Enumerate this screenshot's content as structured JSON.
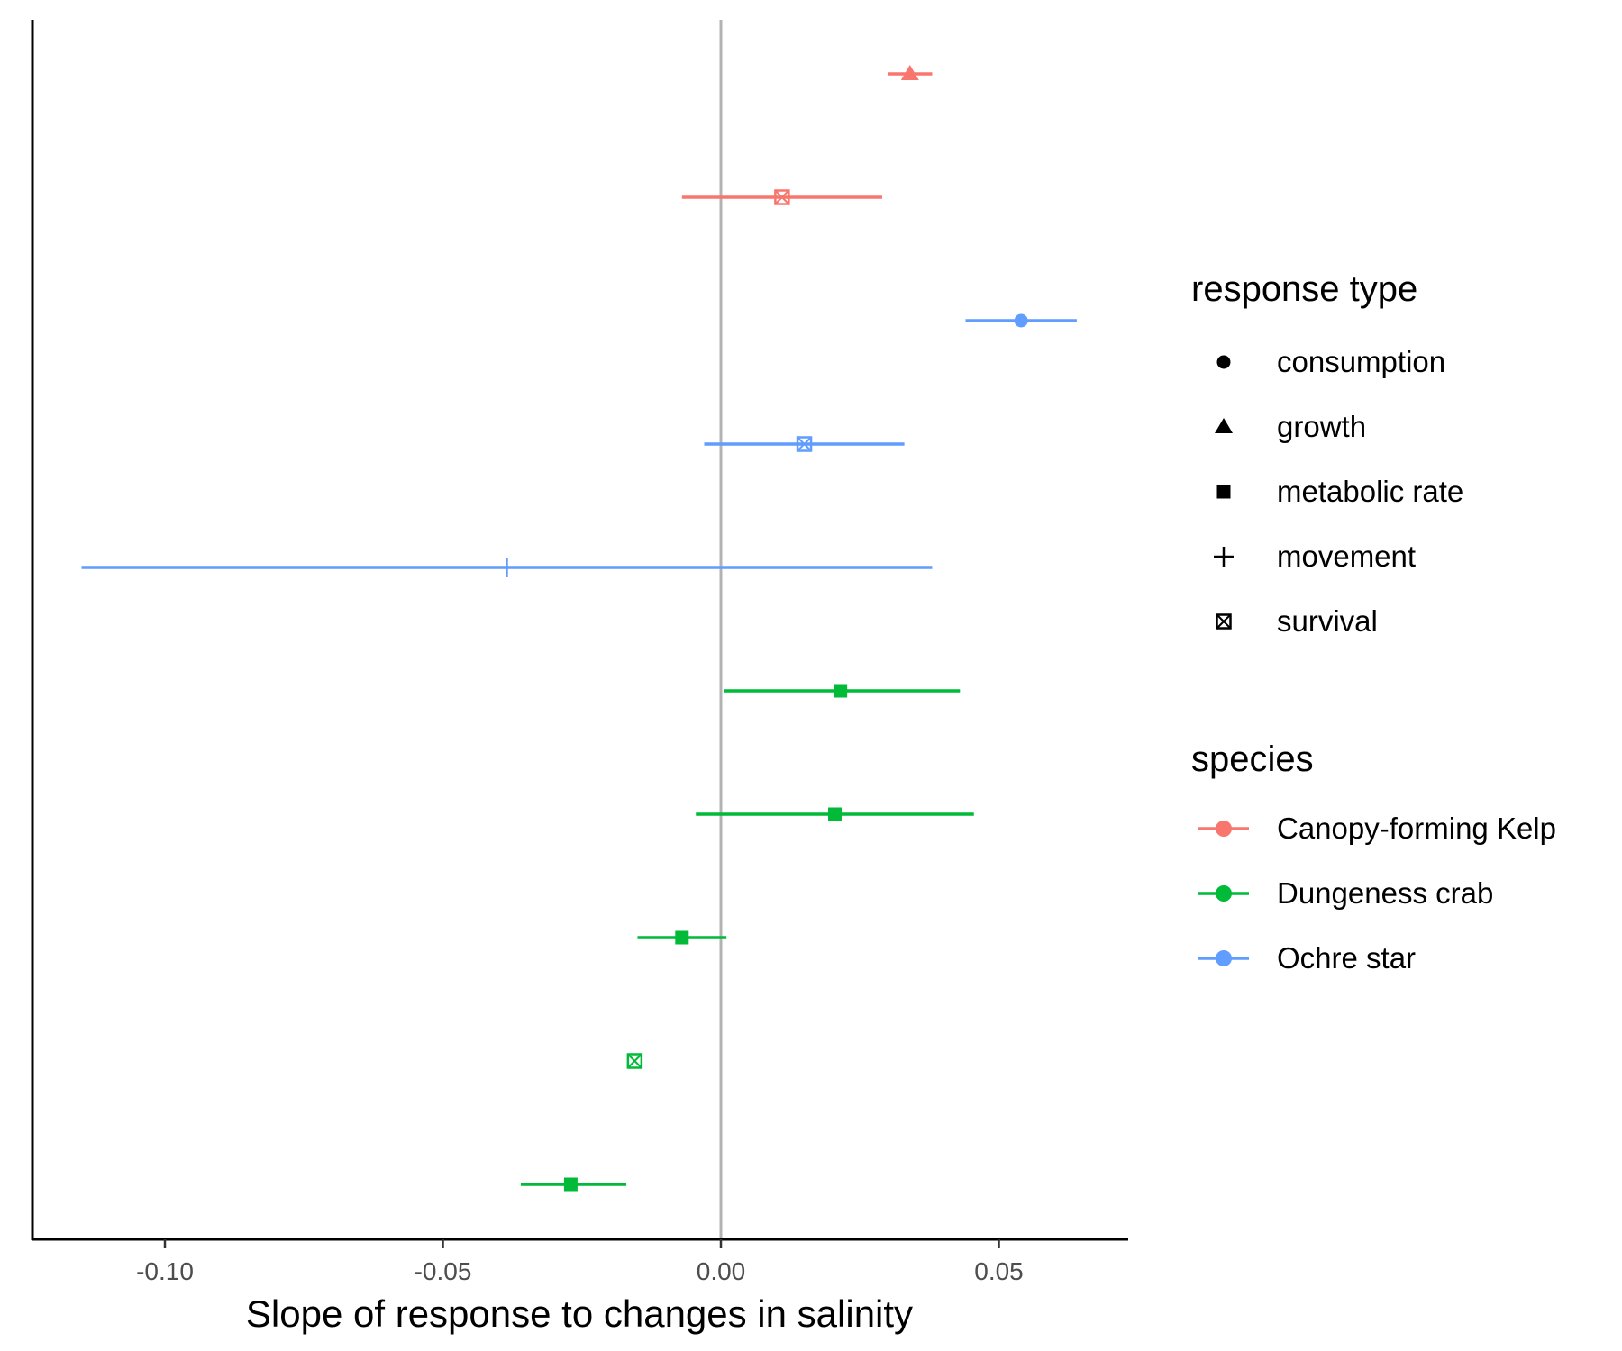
{
  "chart_data": {
    "type": "scatter",
    "xlabel": "Slope of response to changes in salinity",
    "ylabel": "",
    "xlim": [
      -0.125,
      0.072
    ],
    "xticks": [
      "-0.10",
      "-0.05",
      "0.00",
      "0.05"
    ],
    "xtick_values": [
      -0.1,
      -0.05,
      0.0,
      0.05
    ],
    "reference_line": 0,
    "grid": false,
    "legend_placement": "right",
    "points": [
      {
        "species": "Canopy-forming Kelp",
        "response": "growth",
        "estimate": 0.034,
        "low": 0.03,
        "high": 0.038
      },
      {
        "species": "Canopy-forming Kelp",
        "response": "survival",
        "estimate": 0.011,
        "low": -0.007,
        "high": 0.029
      },
      {
        "species": "Ochre star",
        "response": "consumption",
        "estimate": 0.054,
        "low": 0.044,
        "high": 0.064
      },
      {
        "species": "Ochre star",
        "response": "survival",
        "estimate": 0.015,
        "low": -0.003,
        "high": 0.033
      },
      {
        "species": "Ochre star",
        "response": "movement",
        "estimate": -0.0385,
        "low": -0.115,
        "high": 0.038
      },
      {
        "species": "Dungeness crab",
        "response": "metabolic rate",
        "estimate": 0.0215,
        "low": 0.0005,
        "high": 0.043
      },
      {
        "species": "Dungeness crab",
        "response": "metabolic rate",
        "estimate": 0.0205,
        "low": -0.0045,
        "high": 0.0455
      },
      {
        "species": "Dungeness crab",
        "response": "metabolic rate",
        "estimate": -0.007,
        "low": -0.015,
        "high": 0.001
      },
      {
        "species": "Dungeness crab",
        "response": "survival",
        "estimate": -0.0155,
        "low": null,
        "high": null
      },
      {
        "species": "Dungeness crab",
        "response": "metabolic rate",
        "estimate": -0.027,
        "low": -0.036,
        "high": -0.017
      }
    ],
    "legend_shape": {
      "title": "response type",
      "items": [
        {
          "label": "consumption",
          "shape": "circle"
        },
        {
          "label": "growth",
          "shape": "triangle"
        },
        {
          "label": "metabolic rate",
          "shape": "square"
        },
        {
          "label": "movement",
          "shape": "plus"
        },
        {
          "label": "survival",
          "shape": "boxed-x"
        }
      ]
    },
    "legend_color": {
      "title": "species",
      "items": [
        {
          "label": "Canopy-forming Kelp",
          "color": "#F8766D"
        },
        {
          "label": "Dungeness crab",
          "color": "#00BA38"
        },
        {
          "label": "Ochre star",
          "color": "#619CFF"
        }
      ]
    },
    "colors": {
      "Canopy-forming Kelp": "#F8766D",
      "Dungeness crab": "#00BA38",
      "Ochre star": "#619CFF",
      "reference_line": "#b3b3b3",
      "axis": "#000000"
    }
  }
}
